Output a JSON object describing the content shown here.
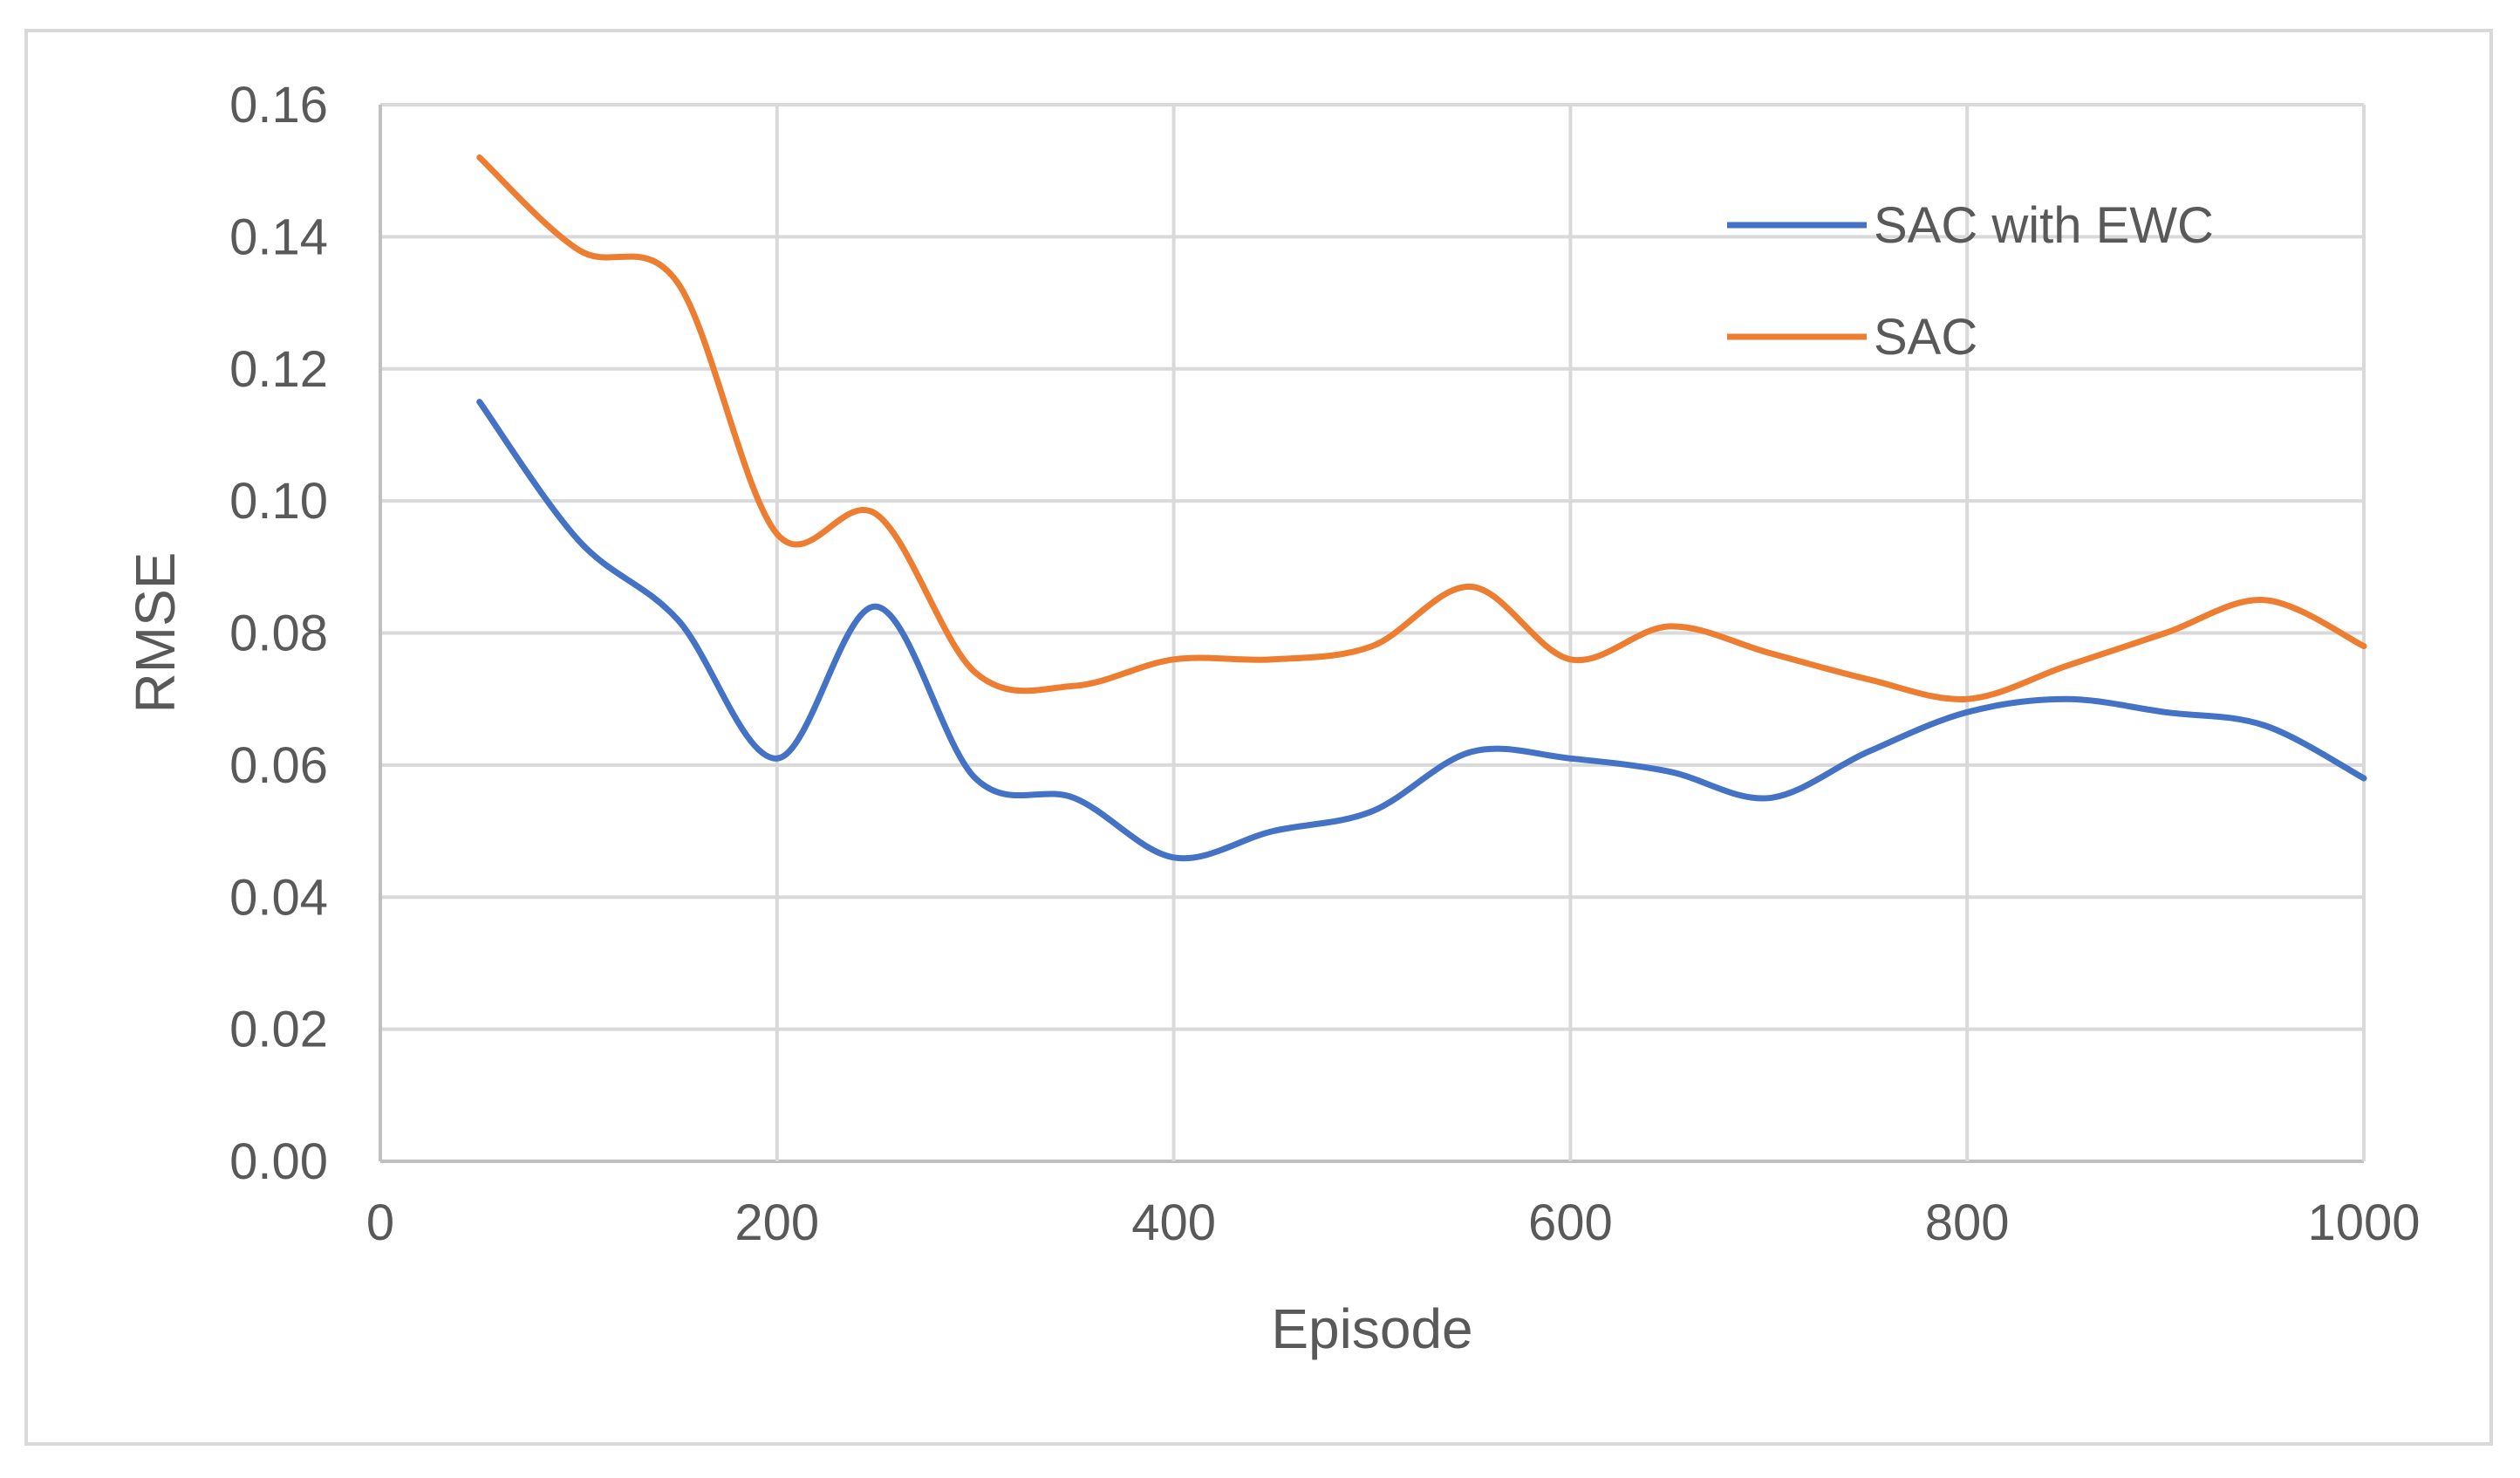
{
  "chart_data": {
    "type": "line",
    "title": "",
    "xlabel": "Episode",
    "ylabel": "RMSE",
    "xlim": [
      0,
      1000
    ],
    "ylim": [
      0,
      0.16
    ],
    "xticks": [
      0,
      200,
      400,
      600,
      800,
      1000
    ],
    "xtick_labels": [
      "0",
      "200",
      "400",
      "600",
      "800",
      "1000"
    ],
    "yticks": [
      0,
      0.02,
      0.04,
      0.06,
      0.08,
      0.1,
      0.12,
      0.14,
      0.16
    ],
    "ytick_labels": [
      "0.00",
      "0.02",
      "0.04",
      "0.06",
      "0.08",
      "0.10",
      "0.12",
      "0.14",
      "0.16"
    ],
    "grid": true,
    "legend_position": "top-right",
    "smooth": true,
    "series": [
      {
        "name": "SAC with EWC",
        "color": "#4472c4",
        "x": [
          50,
          100,
          150,
          200,
          250,
          300,
          350,
          400,
          450,
          500,
          550,
          600,
          650,
          700,
          750,
          800,
          850,
          900,
          950,
          1000
        ],
        "y": [
          0.115,
          0.094,
          0.082,
          0.061,
          0.084,
          0.058,
          0.055,
          0.046,
          0.05,
          0.053,
          0.062,
          0.061,
          0.059,
          0.055,
          0.062,
          0.068,
          0.07,
          0.068,
          0.066,
          0.058
        ]
      },
      {
        "name": "SAC",
        "color": "#ed7d31",
        "x": [
          50,
          100,
          150,
          200,
          250,
          300,
          350,
          400,
          450,
          500,
          550,
          600,
          650,
          700,
          750,
          800,
          850,
          900,
          950,
          1000
        ],
        "y": [
          0.152,
          0.138,
          0.133,
          0.095,
          0.098,
          0.074,
          0.072,
          0.076,
          0.076,
          0.078,
          0.087,
          0.076,
          0.081,
          0.077,
          0.073,
          0.07,
          0.075,
          0.08,
          0.085,
          0.078
        ]
      }
    ]
  }
}
